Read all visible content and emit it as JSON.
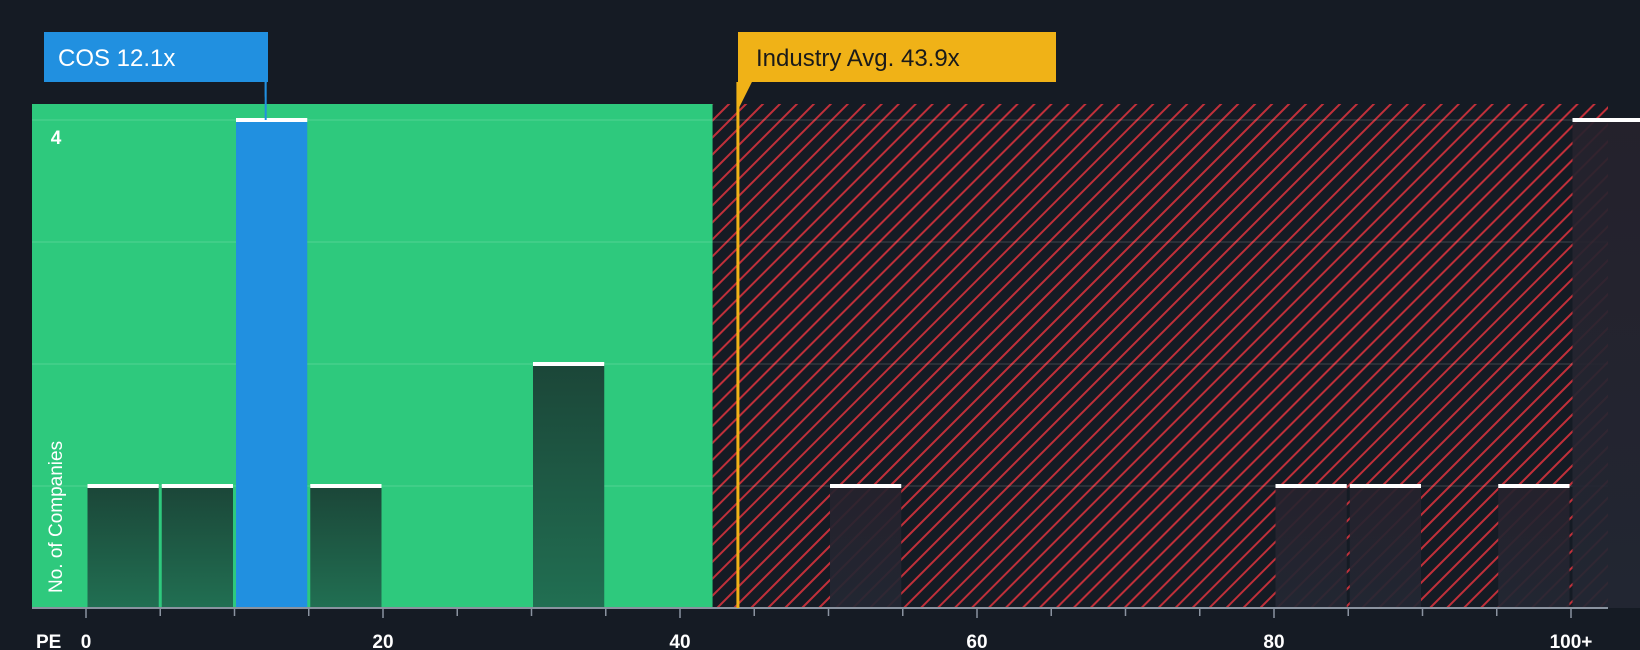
{
  "chart_data": {
    "type": "bar",
    "x_label": "PE",
    "y_label": "No. of Companies",
    "y_tick_shown": 4,
    "ylim": [
      0,
      4
    ],
    "x_ticks": [
      0,
      20,
      40,
      60,
      80,
      100
    ],
    "x_tick_labels": [
      "0",
      "20",
      "40",
      "60",
      "80",
      "100+"
    ],
    "bins": [
      {
        "start": 0,
        "end": 5,
        "count": 1,
        "highlight": false
      },
      {
        "start": 5,
        "end": 10,
        "count": 1,
        "highlight": false
      },
      {
        "start": 10,
        "end": 15,
        "count": 4,
        "highlight": true
      },
      {
        "start": 15,
        "end": 20,
        "count": 1,
        "highlight": false
      },
      {
        "start": 30,
        "end": 35,
        "count": 2,
        "highlight": false
      },
      {
        "start": 50,
        "end": 55,
        "count": 1,
        "highlight": false
      },
      {
        "start": 80,
        "end": 85,
        "count": 1,
        "highlight": false
      },
      {
        "start": 85,
        "end": 90,
        "count": 1,
        "highlight": false
      },
      {
        "start": 95,
        "end": 100,
        "count": 1,
        "highlight": false
      },
      {
        "start": 100,
        "end": 105,
        "count": 4,
        "highlight": false
      }
    ],
    "company": {
      "label": "COS 12.1x",
      "value": 12.1
    },
    "industry": {
      "label": "Industry Avg. 43.9x",
      "value": 43.9
    },
    "fair_zone_end": 42.2,
    "colors": {
      "background": "#151b24",
      "fair_zone": "#2ec97d",
      "expensive_zone": "#151b24",
      "hatch": "#c0303a",
      "company": "#2190e0",
      "industry": "#f0b217",
      "bar_dark": "#1c4a3b",
      "bar_dark_red": "#24232e",
      "bar_top": "#ffffff"
    }
  }
}
